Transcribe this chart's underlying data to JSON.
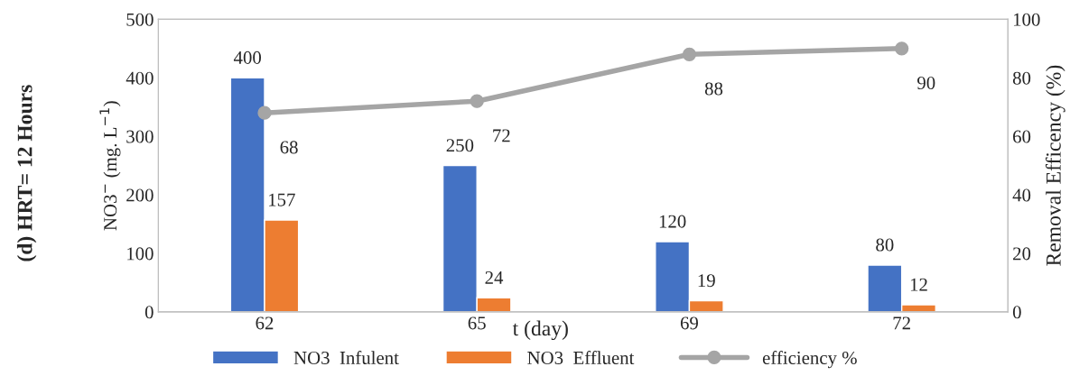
{
  "chart_data": {
    "type": "bar",
    "title": "(d) HRT= 12 Hours",
    "xlabel": "t (day)",
    "ylabel": "NO3$^{−}$ (mg. L$^{−1}$)",
    "y2label": "Removal Efficency (%)",
    "categories": [
      "62",
      "65",
      "69",
      "72"
    ],
    "series": [
      {
        "name": "NO3  Infulent",
        "color": "#4472c4",
        "values": [
          400,
          250,
          120,
          80
        ]
      },
      {
        "name": "NO3  Effluent",
        "color": "#ed7d31",
        "values": [
          157,
          24,
          19,
          12
        ]
      },
      {
        "name": "efficiency %",
        "type": "line",
        "axis": "y2",
        "color": "#a5a5a5",
        "marker": "circle",
        "values": [
          68,
          72,
          88,
          90
        ]
      }
    ],
    "ylim": [
      0,
      500
    ],
    "yticks": [
      0,
      100,
      200,
      300,
      400,
      500
    ],
    "y2lim": [
      0,
      100
    ],
    "y2ticks": [
      0,
      20,
      40,
      60,
      80,
      100
    ],
    "data_labels": true,
    "legend": "bottom",
    "grid": false
  }
}
